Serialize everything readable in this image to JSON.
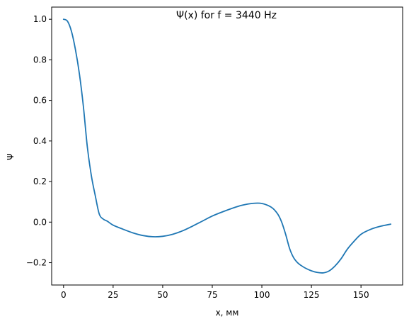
{
  "chart_data": {
    "type": "line",
    "title": "Ψ(x) for f = 3440 Hz",
    "xlabel": "x, мм",
    "ylabel": "Ψ",
    "xlim": [
      -6,
      171
    ],
    "ylim": [
      -0.31,
      1.06
    ],
    "x_ticks": [
      0,
      25,
      50,
      75,
      100,
      125,
      150
    ],
    "x_tick_labels": [
      "0",
      "25",
      "50",
      "75",
      "100",
      "125",
      "150"
    ],
    "y_ticks": [
      -0.2,
      0.0,
      0.2,
      0.4,
      0.6,
      0.8,
      1.0
    ],
    "y_tick_labels": [
      "−0.2",
      "0.0",
      "0.2",
      "0.4",
      "0.6",
      "0.8",
      "1.0"
    ],
    "grid": false,
    "legend": "none",
    "series": [
      {
        "color": "#1f77b4",
        "x": [
          0,
          2,
          4,
          6,
          8,
          10,
          12,
          14,
          16,
          18,
          20,
          22,
          25,
          30,
          35,
          40,
          45,
          50,
          55,
          60,
          65,
          70,
          75,
          80,
          85,
          90,
          95,
          100,
          105,
          108,
          110,
          112,
          114,
          116,
          118,
          120,
          122,
          125,
          128,
          131,
          134,
          137,
          140,
          143,
          146,
          150,
          155,
          160,
          165
        ],
        "y": [
          1.0,
          0.99,
          0.94,
          0.85,
          0.73,
          0.57,
          0.37,
          0.23,
          0.13,
          0.04,
          0.015,
          0.005,
          -0.015,
          -0.035,
          -0.053,
          -0.066,
          -0.072,
          -0.07,
          -0.06,
          -0.043,
          -0.02,
          0.005,
          0.03,
          0.05,
          0.068,
          0.083,
          0.092,
          0.092,
          0.072,
          0.04,
          0.0,
          -0.06,
          -0.13,
          -0.175,
          -0.2,
          -0.215,
          -0.227,
          -0.24,
          -0.248,
          -0.25,
          -0.24,
          -0.215,
          -0.18,
          -0.135,
          -0.1,
          -0.06,
          -0.035,
          -0.02,
          -0.01
        ]
      }
    ]
  }
}
